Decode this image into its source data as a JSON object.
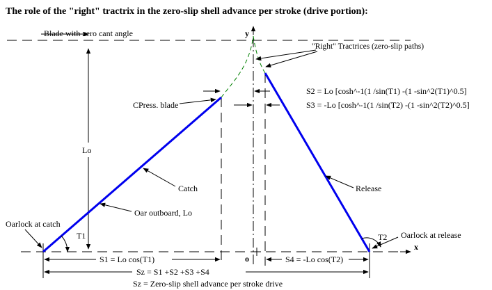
{
  "title": "The role of the \"right\" tractrix in the zero-slip shell advance per stroke (drive portion):",
  "labels": {
    "blade_zero_cant": "Blade with zero cant angle",
    "y_axis": "y",
    "x_axis": "x",
    "origin": "o",
    "tractrices": "\"Right\" Tractrices (zero-slip paths)",
    "s2_formula": "S2 =  Lo [cosh^-1(1 /sin(T1) -(1 -sin^2(T1)^0.5]",
    "s3_formula": "S3 =  -Lo [cosh^-1(1 /sin(T2) -(1 -sin^2(T2)^0.5]",
    "cpress_blade": "CPress. blade",
    "lo": "Lo",
    "catch": "Catch",
    "release": "Release",
    "oar_outboard": "Oar outboard, Lo",
    "oarlock_catch": "Oarlock at catch",
    "oarlock_release": "Oarlock at release",
    "t1": "T1",
    "t2": "T2",
    "s1": "S1 = Lo cos(T1)",
    "s4": "S4 = -Lo cos(T2)",
    "sz_sum": "Sz = S1 +S2 +S3 +S4",
    "sz_caption": "Sz = Zero-slip shell advance per stroke drive"
  },
  "colors": {
    "oar": "#0000ee",
    "tractrix": "#008000",
    "line": "#000000"
  }
}
